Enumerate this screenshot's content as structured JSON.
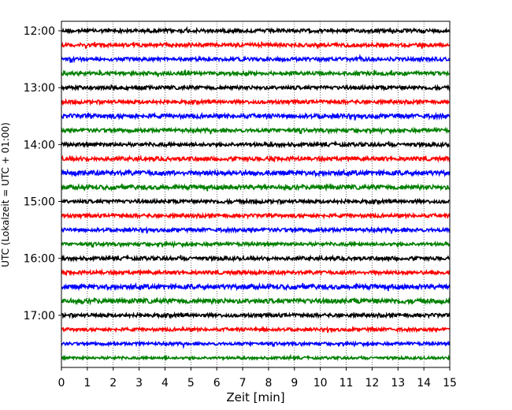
{
  "chart_data": {
    "type": "line",
    "title": "",
    "xlabel": "Zeit  [min]",
    "ylabel": "UTC (Lokalzeit = UTC + 01:00)",
    "xlim": [
      0,
      15
    ],
    "x_ticks": [
      0,
      1,
      2,
      3,
      4,
      5,
      6,
      7,
      8,
      9,
      10,
      11,
      12,
      13,
      14,
      15
    ],
    "x_tick_labels": [
      "0",
      "1",
      "2",
      "3",
      "4",
      "5",
      "6",
      "7",
      "8",
      "9",
      "10",
      "11",
      "12",
      "13",
      "14",
      "15"
    ],
    "y_ticks": [
      "12:00",
      "13:00",
      "14:00",
      "15:00",
      "16:00",
      "17:00"
    ],
    "y_tick_labels": [
      "12:00",
      "13:00",
      "14:00",
      "15:00",
      "16:00",
      "17:00"
    ],
    "ylim_start": "11:50",
    "ylim_end": "17:55",
    "grid": "vertical dotted lines at every minute",
    "trace_interval_minutes": 15,
    "color_cycle": [
      "#000000",
      "#ff0000",
      "#0000ff",
      "#008000"
    ],
    "series": [
      {
        "start_time": "12:00",
        "color": "#000000",
        "amplitude": 1.0
      },
      {
        "start_time": "12:15",
        "color": "#ff0000",
        "amplitude": 1.0
      },
      {
        "start_time": "12:30",
        "color": "#0000ff",
        "amplitude": 1.0
      },
      {
        "start_time": "12:45",
        "color": "#008000",
        "amplitude": 1.0
      },
      {
        "start_time": "13:00",
        "color": "#000000",
        "amplitude": 1.0
      },
      {
        "start_time": "13:15",
        "color": "#ff0000",
        "amplitude": 1.0
      },
      {
        "start_time": "13:30",
        "color": "#0000ff",
        "amplitude": 1.2
      },
      {
        "start_time": "13:45",
        "color": "#008000",
        "amplitude": 1.0
      },
      {
        "start_time": "14:00",
        "color": "#000000",
        "amplitude": 1.0
      },
      {
        "start_time": "14:15",
        "color": "#ff0000",
        "amplitude": 1.1
      },
      {
        "start_time": "14:30",
        "color": "#0000ff",
        "amplitude": 1.3
      },
      {
        "start_time": "14:45",
        "color": "#008000",
        "amplitude": 1.2
      },
      {
        "start_time": "15:00",
        "color": "#000000",
        "amplitude": 1.0
      },
      {
        "start_time": "15:15",
        "color": "#ff0000",
        "amplitude": 1.0
      },
      {
        "start_time": "15:30",
        "color": "#0000ff",
        "amplitude": 1.0
      },
      {
        "start_time": "15:45",
        "color": "#008000",
        "amplitude": 0.9
      },
      {
        "start_time": "16:00",
        "color": "#000000",
        "amplitude": 1.0
      },
      {
        "start_time": "16:15",
        "color": "#ff0000",
        "amplitude": 1.0
      },
      {
        "start_time": "16:30",
        "color": "#0000ff",
        "amplitude": 1.3
      },
      {
        "start_time": "16:45",
        "color": "#008000",
        "amplitude": 1.3
      },
      {
        "start_time": "17:00",
        "color": "#000000",
        "amplitude": 1.0
      },
      {
        "start_time": "17:15",
        "color": "#ff0000",
        "amplitude": 0.9
      },
      {
        "start_time": "17:30",
        "color": "#0000ff",
        "amplitude": 0.8
      },
      {
        "start_time": "17:45",
        "color": "#008000",
        "amplitude": 0.7
      }
    ]
  }
}
